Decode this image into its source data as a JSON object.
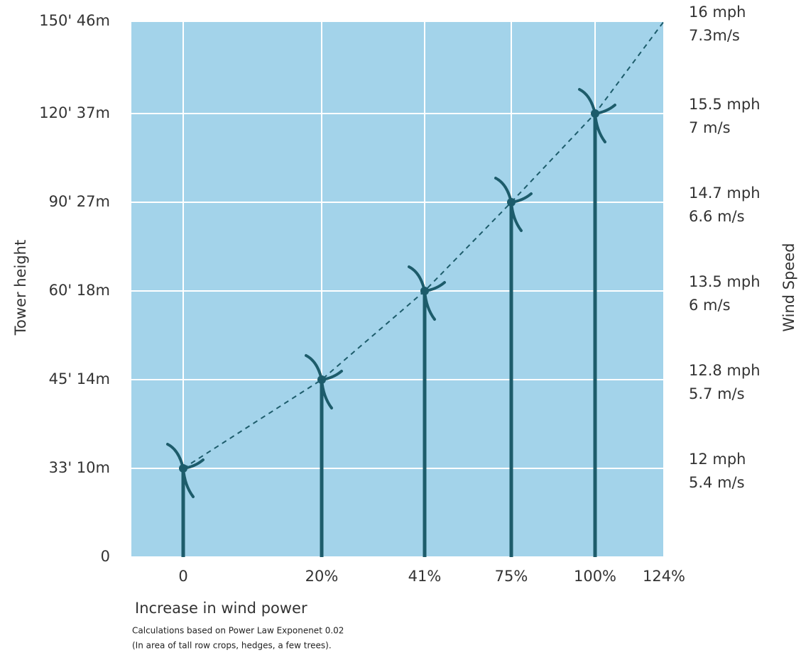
{
  "chart_data": {
    "type": "line",
    "ylabel": "Tower height",
    "y2label": "Wind Speed",
    "xlabel": "Increase in wind power",
    "notes": [
      "Calculations based on Power Law Exponenet 0.02",
      "(In area of tall row crops, hedges, a few trees)."
    ],
    "yticks": [
      {
        "value": 0,
        "label": "0"
      },
      {
        "value": 33,
        "label": "33' 10m"
      },
      {
        "value": 45,
        "label": "45' 14m"
      },
      {
        "value": 60,
        "label": "60' 18m"
      },
      {
        "value": 90,
        "label": "90' 27m"
      },
      {
        "value": 120,
        "label": "120' 37m"
      },
      {
        "value": 150,
        "label": "150' 46m"
      }
    ],
    "y2ticks": [
      {
        "value": 33,
        "mph": "12 mph",
        "ms": "5.4 m/s"
      },
      {
        "value": 45,
        "mph": "12.8 mph",
        "ms": "5.7 m/s"
      },
      {
        "value": 60,
        "mph": "13.5 mph",
        "ms": "6 m/s"
      },
      {
        "value": 90,
        "mph": "14.7 mph",
        "ms": "6.6 m/s"
      },
      {
        "value": 120,
        "mph": "15.5 mph",
        "ms": "7 m/s"
      },
      {
        "value": 150,
        "mph": "16 mph",
        "ms": "7.3m/s"
      }
    ],
    "xticks": [
      {
        "value": 0,
        "label": "0"
      },
      {
        "value": 20,
        "label": "20%"
      },
      {
        "value": 41,
        "label": "41%"
      },
      {
        "value": 75,
        "label": "75%"
      },
      {
        "value": 100,
        "label": "100%"
      },
      {
        "value": 124,
        "label": "124%"
      }
    ],
    "towers": {
      "x": [
        0,
        20,
        41,
        75,
        100
      ],
      "values": [
        33,
        45,
        60,
        90,
        120
      ],
      "color": "#1d5c6b"
    },
    "trend": {
      "x": [
        0,
        20,
        41,
        75,
        100,
        124
      ],
      "values": [
        33,
        45,
        60,
        90,
        120,
        150
      ],
      "color": "#1d5c6b",
      "dashed": true
    },
    "background": "#a3d3ea",
    "grid": true
  }
}
